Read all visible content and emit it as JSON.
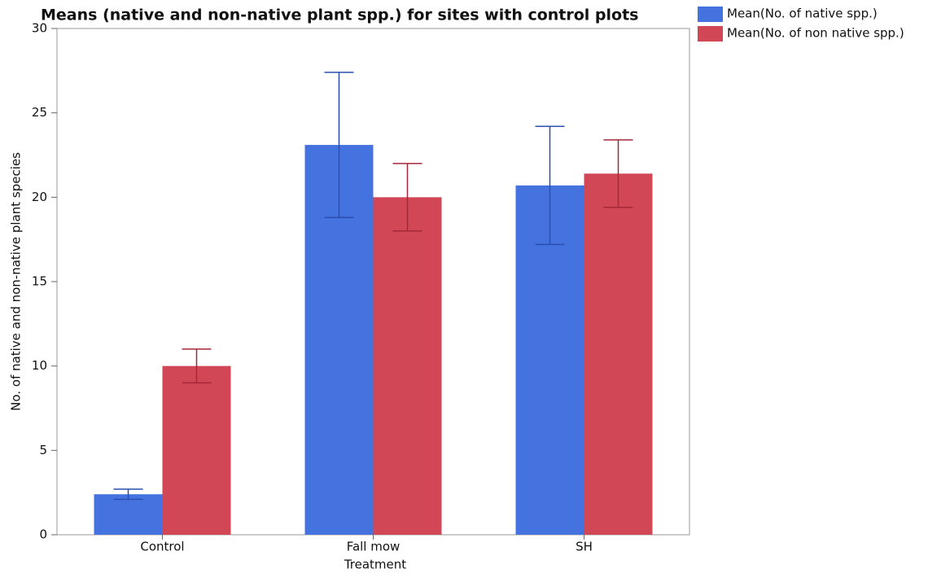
{
  "chart_data": {
    "type": "bar",
    "title": "Means (native and non-native plant spp.) for sites with control plots",
    "x_label": "Treatment",
    "y_label": "No. of native and non-native plant species",
    "categories": [
      "Control",
      "Fall mow",
      "SH"
    ],
    "series": [
      {
        "name": "Mean(No. of native spp.)",
        "color": "#4472de",
        "error_color": "#2a4fb0",
        "values": [
          2.4,
          23.1,
          20.7
        ],
        "errors": [
          0.3,
          4.3,
          3.5
        ]
      },
      {
        "name": "Mean(No. of non native spp.)",
        "color": "#d24756",
        "error_color": "#a3283a",
        "values": [
          10,
          20,
          21.4
        ],
        "errors": [
          1,
          2,
          2
        ]
      }
    ],
    "ylim": [
      0,
      30
    ],
    "yticks": [
      0,
      5,
      10,
      15,
      20,
      25,
      30
    ],
    "legend": "top-right"
  }
}
